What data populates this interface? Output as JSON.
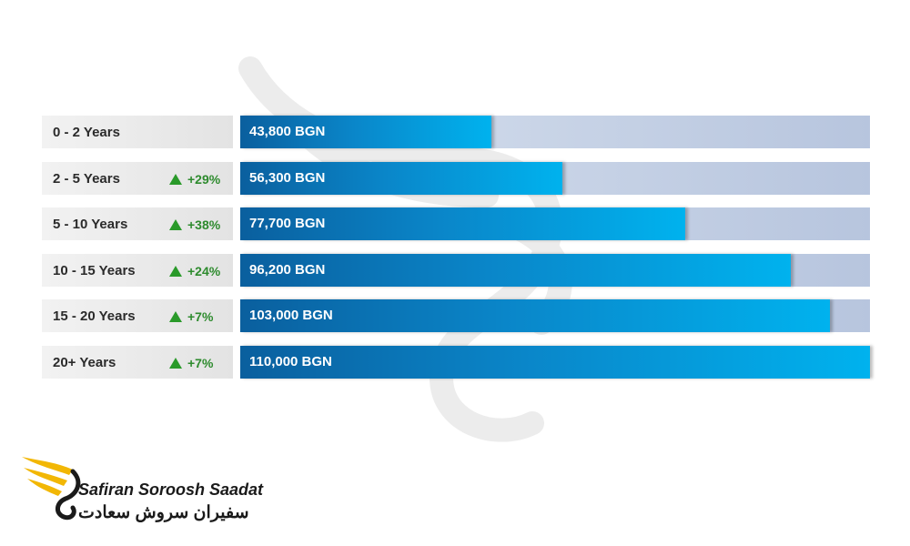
{
  "chart_data": {
    "type": "bar",
    "orientation": "horizontal",
    "categories": [
      "0 - 2 Years",
      "2 - 5 Years",
      "5 - 10 Years",
      "10 - 15 Years",
      "15 - 20 Years",
      "20+ Years"
    ],
    "values": [
      43800,
      56300,
      77700,
      96200,
      103000,
      110000
    ],
    "value_labels": [
      "43,800 BGN",
      "56,300 BGN",
      "77,700 BGN",
      "96,200 BGN",
      "103,000 BGN",
      "110,000 BGN"
    ],
    "growth": [
      "",
      "+29%",
      "+38%",
      "+24%",
      "+7%",
      "+7%"
    ],
    "unit": "BGN",
    "xlim": [
      0,
      110000
    ],
    "grid": false,
    "legend": "none",
    "colors": {
      "bar_start": "#0a5f9e",
      "bar_end": "#00b2ee",
      "track": "#c3cfe3",
      "growth": "#2a9a2a"
    }
  },
  "logo": {
    "brand_en": "Safiran Soroosh Saadat",
    "brand_fa": "سفیران سروش سعادت",
    "colors": {
      "wing": "#f2b705",
      "text": "#1a1a1a"
    },
    "icon": "wing-swan-icon"
  },
  "watermark": {
    "icon": "wing-swan-watermark-icon"
  }
}
